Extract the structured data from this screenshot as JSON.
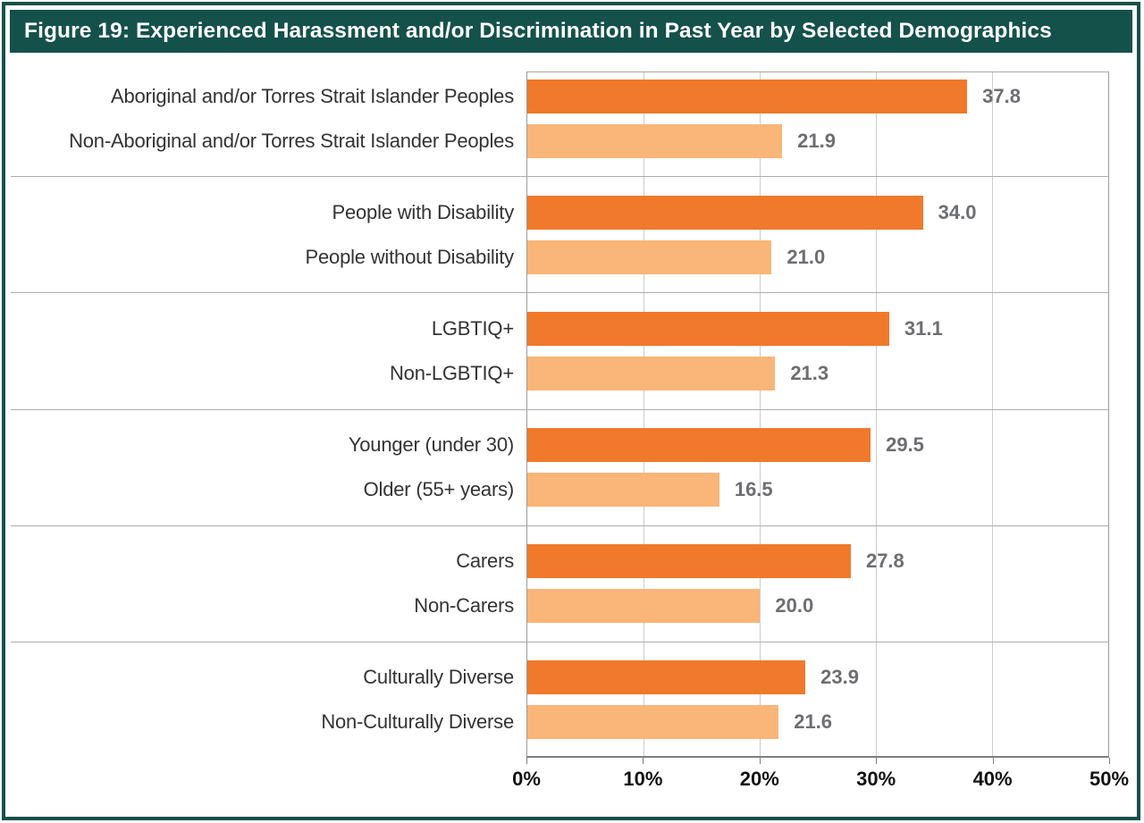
{
  "title": "Figure 19: Experienced Harassment and/or Discrimination in Past Year by Selected Demographics",
  "colors": {
    "header_bg": "#15514B",
    "frame_border": "#15514B",
    "bar_primary": "#F0792B",
    "bar_secondary": "#FAB578",
    "value_label": "#6D6E71",
    "gridline": "#CCCCCC",
    "separator": "#ADADAD"
  },
  "chart_data": {
    "type": "bar",
    "orientation": "horizontal",
    "title": "Figure 19: Experienced Harassment and/or Discrimination in Past Year by Selected Demographics",
    "xlabel": "",
    "ylabel": "",
    "xlim": [
      0,
      50
    ],
    "x_ticks": [
      "0%",
      "10%",
      "20%",
      "30%",
      "40%",
      "50%"
    ],
    "grid": true,
    "legend": false,
    "value_labels_shown": true,
    "groups": [
      {
        "bars": [
          {
            "label": "Aboriginal and/or Torres Strait Islander Peoples",
            "value": 37.8,
            "value_label": "37.8"
          },
          {
            "label": "Non-Aboriginal and/or Torres Strait Islander Peoples",
            "value": 21.9,
            "value_label": "21.9"
          }
        ]
      },
      {
        "bars": [
          {
            "label": "People with Disability",
            "value": 34.0,
            "value_label": "34.0"
          },
          {
            "label": "People without Disability",
            "value": 21.0,
            "value_label": "21.0"
          }
        ]
      },
      {
        "bars": [
          {
            "label": "LGBTIQ+",
            "value": 31.1,
            "value_label": "31.1"
          },
          {
            "label": "Non-LGBTIQ+",
            "value": 21.3,
            "value_label": "21.3"
          }
        ]
      },
      {
        "bars": [
          {
            "label": "Younger (under 30)",
            "value": 29.5,
            "value_label": "29.5"
          },
          {
            "label": "Older (55+ years)",
            "value": 16.5,
            "value_label": "16.5"
          }
        ]
      },
      {
        "bars": [
          {
            "label": "Carers",
            "value": 27.8,
            "value_label": "27.8"
          },
          {
            "label": "Non-Carers",
            "value": 20.0,
            "value_label": "20.0"
          }
        ]
      },
      {
        "bars": [
          {
            "label": "Culturally Diverse",
            "value": 23.9,
            "value_label": "23.9"
          },
          {
            "label": "Non-Culturally Diverse",
            "value": 21.6,
            "value_label": "21.6"
          }
        ]
      }
    ]
  }
}
